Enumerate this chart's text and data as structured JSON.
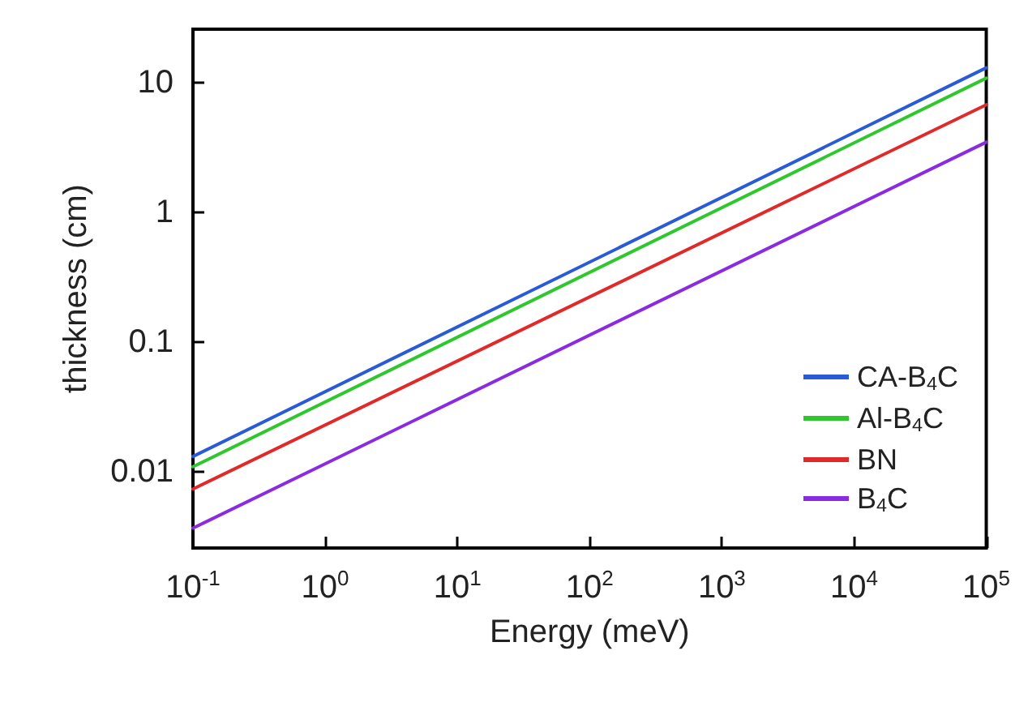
{
  "chart_data": {
    "type": "line",
    "xlabel": "Energy (meV)",
    "ylabel": "thickness (cm)",
    "log": "xy",
    "grid": false,
    "legend": "bottom right",
    "marker": "none",
    "line_style": "solid",
    "xlim": [
      0.1,
      100000
    ],
    "ylim": [
      0.0026,
      26
    ],
    "xticks": [
      {
        "value": 0.1,
        "label": "10$^{-1}$"
      },
      {
        "value": 1,
        "label": "10$^{0}$"
      },
      {
        "value": 10,
        "label": "10$^{1}$"
      },
      {
        "value": 100,
        "label": "10$^{2}$"
      },
      {
        "value": 1000,
        "label": "10$^{3}$"
      },
      {
        "value": 10000,
        "label": "10$^{4}$"
      },
      {
        "value": 100000,
        "label": "10$^{5}$"
      }
    ],
    "yticks": [
      0.01,
      0.1,
      1,
      10
    ],
    "x": [
      0.1,
      100000
    ],
    "series": [
      {
        "name": "CA-B$_{4}$C",
        "color": "#2a5bd7",
        "values": [
          0.0132,
          13.1
        ]
      },
      {
        "name": "Al-B$_{4}$C",
        "color": "#2ec82e",
        "values": [
          0.011,
          10.9
        ]
      },
      {
        "name": "BN",
        "color": "#e02a2a",
        "values": [
          0.0074,
          6.8
        ]
      },
      {
        "name": "B$_{4}$C",
        "color": "#8a2be2",
        "values": [
          0.0037,
          3.5
        ]
      }
    ]
  }
}
